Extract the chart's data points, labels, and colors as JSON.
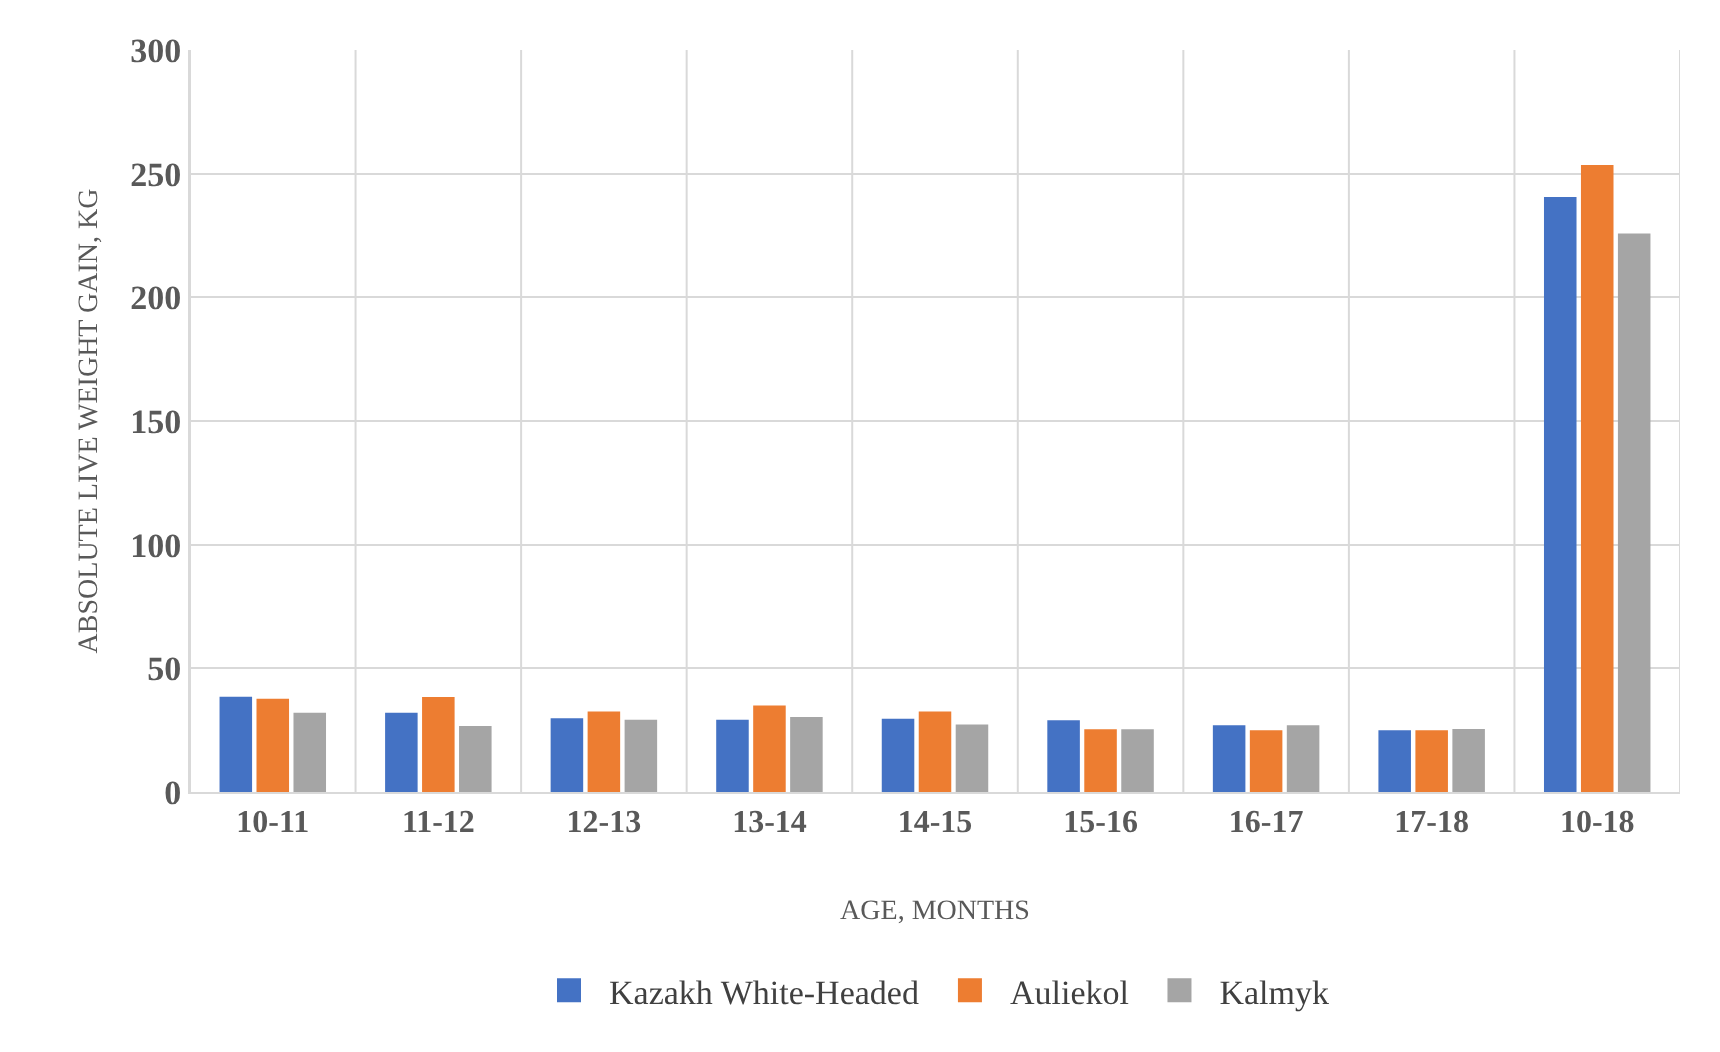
{
  "chart_data": {
    "type": "bar",
    "xlabel": "AGE, MONTHS",
    "ylabel": "ABSOLUTE LIVE WEIGHT GAIN, KG",
    "categories": [
      "10-11",
      "11-12",
      "12-13",
      "13-14",
      "14-15",
      "15-16",
      "16-17",
      "17-18",
      "10-18"
    ],
    "series": [
      {
        "name": "Kazakh White-Headed",
        "color": "#4472c4",
        "values": [
          38.5,
          32,
          29.8,
          29.2,
          29.6,
          29,
          27,
          25,
          240.6
        ]
      },
      {
        "name": "Auliekol",
        "color": "#ed7d31",
        "values": [
          37.7,
          38.4,
          32.5,
          35,
          32.5,
          25.4,
          25,
          25,
          253.5
        ]
      },
      {
        "name": "Kalmyk",
        "color": "#a5a5a5",
        "values": [
          32,
          26.7,
          29.2,
          30.3,
          27.3,
          25.4,
          27,
          25.5,
          225.8
        ]
      }
    ],
    "ylim": [
      0,
      300
    ],
    "yticks": [
      0,
      50,
      100,
      150,
      200,
      250,
      300
    ],
    "grid": true,
    "legend": "bottom"
  }
}
